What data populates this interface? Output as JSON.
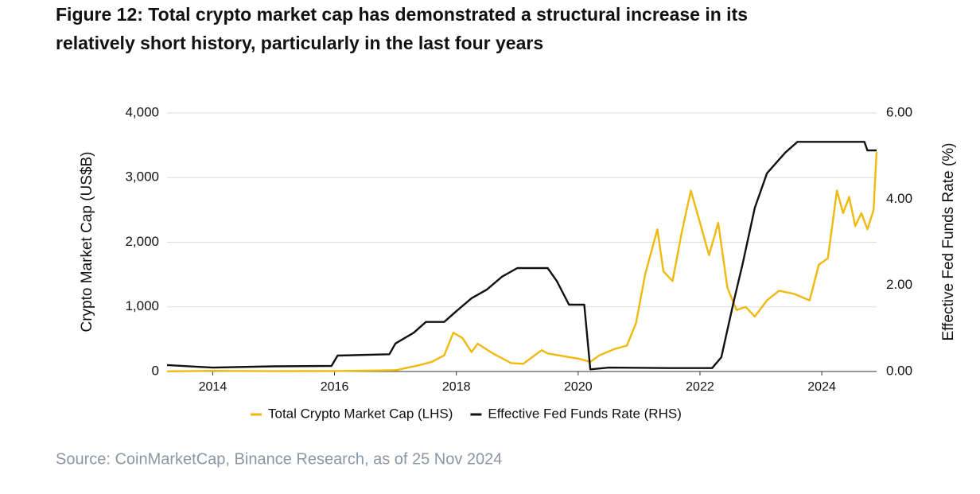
{
  "chart_data": {
    "type": "line",
    "title": "Figure 12: Total crypto market cap has demonstrated a structural increase in its relatively short history, particularly in the last four years",
    "ylabel": "Crypto Market Cap (US$B)",
    "y2label": "Effective Fed Funds Rate (%)",
    "source": "Source: CoinMarketCap, Binance Research, as of 25 Nov 2024",
    "xlim": [
      2013.25,
      2024.9
    ],
    "xticks": [
      2014,
      2016,
      2018,
      2020,
      2022,
      2024
    ],
    "ylim": [
      0,
      4000
    ],
    "yticks": [
      0,
      {
        "value": 1000,
        "label": "1,000"
      },
      {
        "value": 2000,
        "label": "2,000"
      },
      {
        "value": 3000,
        "label": "3,000"
      },
      {
        "value": 4000,
        "label": "4,000"
      }
    ],
    "y2lim": [
      0,
      6
    ],
    "y2ticks": [
      {
        "value": 0,
        "label": "0.00"
      },
      {
        "value": 2,
        "label": "2.00"
      },
      {
        "value": 4,
        "label": "4.00"
      },
      {
        "value": 6,
        "label": "6.00"
      }
    ],
    "legend": "bottom",
    "series": [
      {
        "name": "Total Crypto Market Cap (LHS)",
        "color": "#f0b90b",
        "x": [
          2013.25,
          2014,
          2015,
          2016,
          2017,
          2017.4,
          2017.6,
          2017.8,
          2017.95,
          2018.1,
          2018.25,
          2018.35,
          2018.6,
          2018.9,
          2019.1,
          2019.4,
          2019.5,
          2019.8,
          2020.0,
          2020.2,
          2020.35,
          2020.6,
          2020.8,
          2020.95,
          2021.1,
          2021.3,
          2021.4,
          2021.55,
          2021.7,
          2021.85,
          2022.0,
          2022.15,
          2022.3,
          2022.45,
          2022.6,
          2022.75,
          2022.9,
          2023.1,
          2023.3,
          2023.55,
          2023.8,
          2023.95,
          2024.1,
          2024.25,
          2024.35,
          2024.45,
          2024.55,
          2024.65,
          2024.75,
          2024.85,
          2024.9
        ],
        "values": [
          2,
          10,
          5,
          7,
          18,
          100,
          150,
          250,
          600,
          520,
          300,
          430,
          280,
          130,
          120,
          330,
          280,
          230,
          200,
          150,
          250,
          350,
          400,
          750,
          1500,
          2200,
          1550,
          1400,
          2150,
          2800,
          2300,
          1800,
          2300,
          1300,
          950,
          1000,
          850,
          1100,
          1250,
          1200,
          1100,
          1650,
          1750,
          2800,
          2450,
          2700,
          2250,
          2450,
          2200,
          2500,
          3400
        ]
      },
      {
        "name": "Effective Fed Funds Rate (RHS)",
        "color": "#111111",
        "axis": "y2",
        "x": [
          2013.25,
          2014,
          2015,
          2015.95,
          2016.05,
          2016.9,
          2017.0,
          2017.3,
          2017.5,
          2017.8,
          2018.0,
          2018.25,
          2018.5,
          2018.75,
          2019.0,
          2019.5,
          2019.65,
          2019.85,
          2020.1,
          2020.2,
          2020.5,
          2021.5,
          2022.2,
          2022.35,
          2022.55,
          2022.7,
          2022.9,
          2023.1,
          2023.4,
          2023.6,
          2024.7,
          2024.75,
          2024.9
        ],
        "values": [
          0.15,
          0.09,
          0.12,
          0.13,
          0.37,
          0.4,
          0.65,
          0.9,
          1.15,
          1.15,
          1.4,
          1.7,
          1.9,
          2.2,
          2.4,
          2.4,
          2.1,
          1.55,
          1.55,
          0.05,
          0.09,
          0.08,
          0.08,
          0.33,
          1.6,
          2.5,
          3.8,
          4.6,
          5.08,
          5.33,
          5.33,
          5.13,
          5.13
        ]
      }
    ]
  }
}
